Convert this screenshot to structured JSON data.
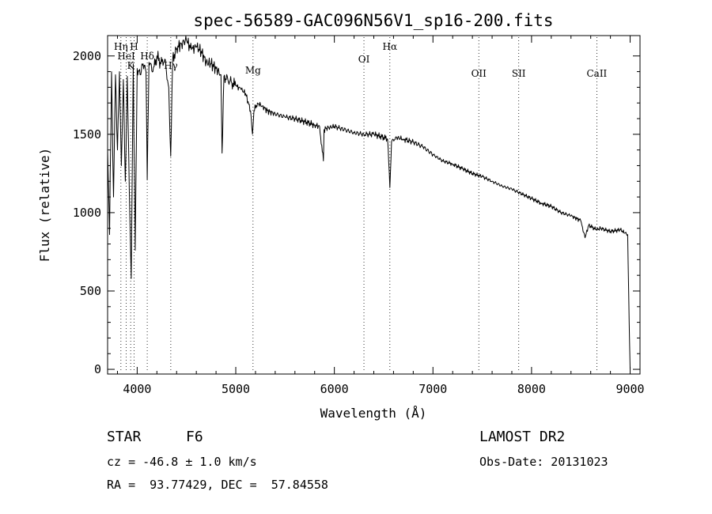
{
  "chart_data": {
    "type": "line",
    "title": "spec-56589-GAC096N56V1_sp16-200.fits",
    "xlabel": "Wavelength (Å)",
    "ylabel": "Flux (relative)",
    "xlim": [
      3700,
      9100
    ],
    "ylim": [
      -30,
      2130
    ],
    "xticks": [
      4000,
      5000,
      6000,
      7000,
      8000,
      9000
    ],
    "yticks": [
      0,
      500,
      1000,
      1500,
      2000
    ],
    "grid": false,
    "series": [
      {
        "x": [
          3700,
          3720,
          3740,
          3760,
          3780,
          3800,
          3820,
          3840,
          3860,
          3880,
          3900,
          3920,
          3940,
          3960,
          3980,
          4000,
          4030,
          4060,
          4090,
          4102,
          4120,
          4160,
          4200,
          4240,
          4280,
          4320,
          4340,
          4360,
          4400,
          4450,
          4500,
          4550,
          4600,
          4650,
          4700,
          4750,
          4800,
          4850,
          4861,
          4880,
          4920,
          4960,
          5000,
          5050,
          5100,
          5150,
          5170,
          5184,
          5220,
          5270,
          5320,
          5400,
          5500,
          5600,
          5700,
          5800,
          5850,
          5889,
          5895,
          5920,
          6000,
          6100,
          6200,
          6300,
          6400,
          6500,
          6540,
          6563,
          6580,
          6620,
          6700,
          6800,
          6900,
          7000,
          7100,
          7200,
          7300,
          7400,
          7500,
          7600,
          7700,
          7800,
          7900,
          8000,
          8100,
          8200,
          8300,
          8400,
          8498,
          8542,
          8580,
          8662,
          8700,
          8800,
          8900,
          8950,
          8975,
          8990,
          9000
        ],
        "y": [
          1400,
          860,
          1900,
          1100,
          1880,
          1400,
          1900,
          1300,
          1850,
          1200,
          1870,
          1150,
          580,
          1950,
          760,
          1920,
          1880,
          1950,
          1900,
          1210,
          1960,
          1900,
          2000,
          1950,
          1980,
          1800,
          1360,
          1980,
          2050,
          2080,
          2100,
          2040,
          2060,
          2030,
          1960,
          1950,
          1920,
          1880,
          1380,
          1870,
          1850,
          1830,
          1810,
          1790,
          1760,
          1650,
          1500,
          1650,
          1700,
          1680,
          1650,
          1630,
          1610,
          1600,
          1580,
          1560,
          1550,
          1330,
          1530,
          1540,
          1550,
          1530,
          1510,
          1500,
          1500,
          1480,
          1470,
          1160,
          1450,
          1480,
          1470,
          1450,
          1420,
          1370,
          1330,
          1310,
          1280,
          1250,
          1230,
          1200,
          1170,
          1150,
          1120,
          1090,
          1060,
          1040,
          1000,
          980,
          950,
          840,
          920,
          890,
          900,
          880,
          890,
          870,
          860,
          300,
          0
        ]
      }
    ],
    "line_markers": [
      {
        "label": "Hη",
        "x": 3835
      },
      {
        "label": "HeI",
        "x": 3889
      },
      {
        "label": "K",
        "x": 3934
      },
      {
        "label": "H",
        "x": 3969
      },
      {
        "label": "Hδ",
        "x": 4102
      },
      {
        "label": "Hγ",
        "x": 4341
      },
      {
        "label": "Mg",
        "x": 5175
      },
      {
        "label": "OI",
        "x": 6300
      },
      {
        "label": "Hα",
        "x": 6563
      },
      {
        "label": "OII",
        "x": 7465
      },
      {
        "label": "SII",
        "x": 7870
      },
      {
        "label": "CaII",
        "x": 8662
      }
    ]
  },
  "info": {
    "object_class": "STAR",
    "subclass": "F6",
    "survey": "LAMOST DR2",
    "redshift": "cz = -46.8 ± 1.0 km/s",
    "obs_date": "Obs-Date: 20131023",
    "coords": "RA =  93.77429, DEC =  57.84558"
  }
}
